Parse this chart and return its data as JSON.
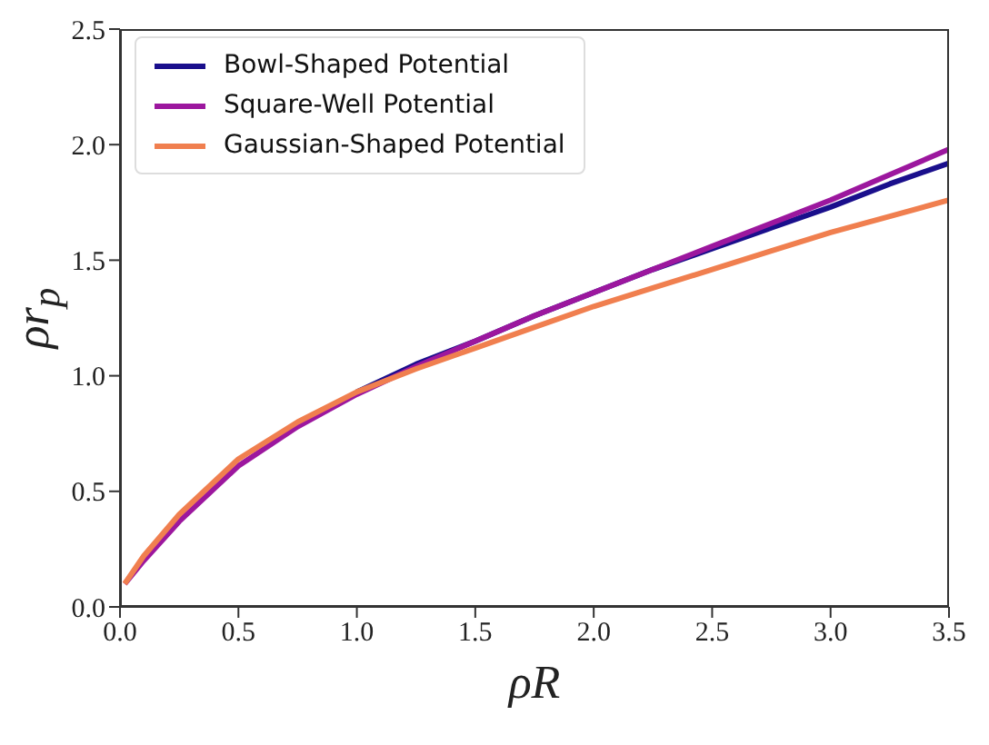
{
  "chart_data": {
    "type": "line",
    "xlabel": "ρR",
    "ylabel": "ρr$_{p}$",
    "xlim": [
      0,
      3.5
    ],
    "ylim": [
      0,
      2.5
    ],
    "xticks": [
      {
        "value": 0,
        "label": "0.0"
      },
      0.5,
      {
        "value": 1,
        "label": "1.0"
      },
      1.5,
      {
        "value": 2,
        "label": "2.0"
      },
      2.5,
      {
        "value": 3,
        "label": "3.0"
      },
      3.5
    ],
    "yticks": [
      {
        "value": 0,
        "label": "0.0"
      },
      0.5,
      {
        "value": 1,
        "label": "1.0"
      },
      1.5,
      {
        "value": 2,
        "label": "2.0"
      },
      2.5
    ],
    "x": [
      0.02,
      0.1,
      0.25,
      0.5,
      0.75,
      1.0,
      1.25,
      1.5,
      1.75,
      2.0,
      2.25,
      2.5,
      2.75,
      3.0,
      3.25,
      3.5
    ],
    "legend": "top left",
    "grid": false,
    "marker": "none",
    "line_style": "solid",
    "series": [
      {
        "name": "Bowl-Shaped Potential",
        "color": "#1a0f8c",
        "values": [
          null,
          null,
          null,
          null,
          null,
          0.93,
          1.05,
          1.15,
          1.26,
          1.36,
          1.46,
          1.55,
          1.64,
          1.73,
          1.83,
          1.92
        ]
      },
      {
        "name": "Square-Well Potential",
        "color": "#9c179e",
        "values": [
          0.1,
          0.2,
          0.37,
          0.61,
          0.78,
          0.92,
          1.04,
          1.15,
          1.26,
          1.36,
          1.46,
          1.56,
          1.66,
          1.76,
          1.87,
          1.98
        ]
      },
      {
        "name": "Gaussian-Shaped Potential",
        "color": "#f07f4f",
        "values": [
          0.1,
          0.22,
          0.4,
          0.64,
          0.8,
          0.93,
          1.03,
          1.12,
          1.21,
          1.3,
          1.38,
          1.46,
          1.54,
          1.62,
          1.69,
          1.76
        ]
      }
    ]
  }
}
